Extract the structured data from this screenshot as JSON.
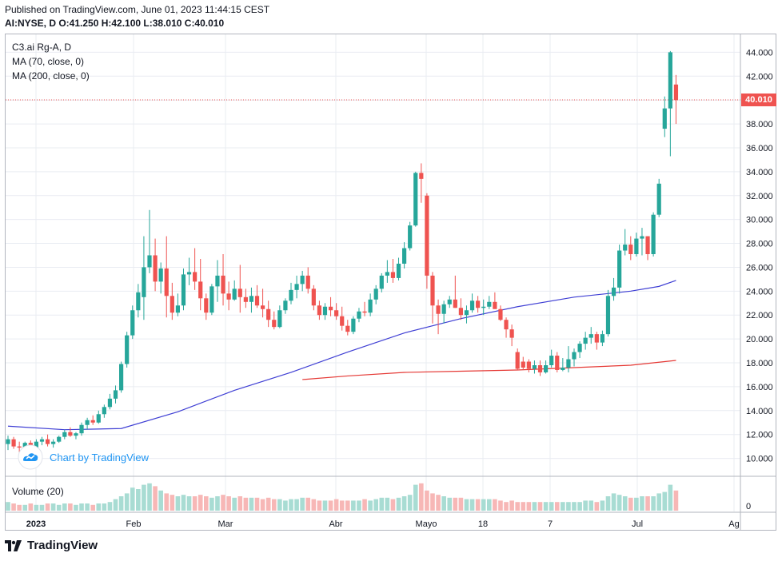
{
  "header": {
    "published": "Published on TradingView.com, June 01, 2023 11:44:15 CEST",
    "ohlc": "AI:NYSE, D O:41.250 H:42.100 L:38.010 C:40.010"
  },
  "legend": {
    "symbol": "C3.ai Rg-A, D",
    "ma70": "MA (70, close, 0)",
    "ma200": "MA (200, close, 0)"
  },
  "volume_label": "Volume (20)",
  "watermark": "Chart by TradingView",
  "footer_brand": "TradingView",
  "last_price_label": "40.010",
  "colors": {
    "up": "#26a69a",
    "down": "#ef5350",
    "ma70": "#3f3fd4",
    "ma200": "#e53935",
    "grid": "#e9ecf2"
  },
  "chart_data": {
    "type": "candlestick",
    "ylim": [
      8.5,
      45.5
    ],
    "y_ticks": [
      "10.000",
      "12.000",
      "14.000",
      "16.000",
      "18.000",
      "20.000",
      "22.000",
      "24.000",
      "26.000",
      "28.000",
      "30.000",
      "32.000",
      "34.000",
      "36.000",
      "38.000",
      "40.000",
      "42.000",
      "44.000"
    ],
    "x_ticks": [
      "2023",
      "Feb",
      "Mar",
      "Abr",
      "Mayo",
      "18",
      "7",
      "Jul",
      "Ag"
    ],
    "volume_axis_label": "0",
    "last_close": 40.01,
    "candles": [
      [
        11.2,
        11.9,
        10.7,
        11.6
      ],
      [
        11.6,
        11.8,
        10.8,
        11.0
      ],
      [
        11.0,
        11.4,
        10.5,
        10.9
      ],
      [
        10.9,
        11.4,
        10.6,
        11.3
      ],
      [
        11.3,
        11.5,
        10.7,
        10.9
      ],
      [
        10.9,
        11.6,
        10.6,
        11.4
      ],
      [
        11.4,
        11.8,
        11.1,
        11.6
      ],
      [
        11.6,
        12.0,
        11.0,
        11.2
      ],
      [
        11.2,
        11.6,
        10.9,
        11.4
      ],
      [
        11.4,
        11.9,
        11.3,
        11.8
      ],
      [
        11.8,
        12.4,
        11.6,
        12.2
      ],
      [
        12.2,
        12.6,
        11.8,
        11.9
      ],
      [
        11.9,
        12.2,
        11.6,
        12.1
      ],
      [
        12.1,
        13.0,
        11.9,
        12.8
      ],
      [
        12.8,
        13.4,
        12.4,
        13.2
      ],
      [
        13.2,
        13.6,
        12.8,
        13.0
      ],
      [
        13.0,
        14.0,
        12.9,
        13.7
      ],
      [
        13.7,
        14.5,
        13.4,
        14.3
      ],
      [
        14.3,
        15.4,
        14.1,
        15.0
      ],
      [
        15.0,
        16.1,
        14.6,
        15.7
      ],
      [
        15.7,
        18.1,
        15.5,
        17.9
      ],
      [
        17.9,
        20.6,
        17.6,
        20.3
      ],
      [
        20.3,
        22.8,
        20.0,
        22.4
      ],
      [
        22.4,
        24.6,
        21.8,
        23.9
      ],
      [
        23.5,
        28.6,
        21.6,
        26.0
      ],
      [
        26.0,
        30.8,
        25.5,
        27.0
      ],
      [
        27.0,
        28.4,
        24.0,
        24.8
      ],
      [
        24.8,
        26.4,
        23.8,
        25.9
      ],
      [
        25.9,
        28.6,
        21.8,
        23.6
      ],
      [
        23.6,
        24.7,
        21.6,
        22.2
      ],
      [
        22.2,
        23.8,
        21.9,
        22.8
      ],
      [
        22.8,
        25.9,
        22.4,
        25.4
      ],
      [
        25.4,
        26.8,
        24.5,
        25.6
      ],
      [
        25.6,
        27.6,
        24.1,
        24.8
      ],
      [
        24.8,
        26.7,
        22.4,
        23.4
      ],
      [
        23.4,
        23.8,
        21.6,
        22.2
      ],
      [
        22.2,
        24.6,
        22.0,
        24.4
      ],
      [
        24.4,
        26.6,
        23.1,
        25.3
      ],
      [
        25.3,
        27.1,
        22.8,
        23.8
      ],
      [
        23.8,
        24.8,
        22.4,
        23.3
      ],
      [
        23.3,
        24.9,
        23.2,
        24.2
      ],
      [
        24.2,
        26.2,
        22.2,
        23.5
      ],
      [
        23.5,
        24.2,
        22.6,
        23.1
      ],
      [
        23.1,
        24.3,
        22.2,
        23.6
      ],
      [
        23.6,
        24.5,
        22.6,
        22.8
      ],
      [
        22.8,
        24.2,
        21.8,
        22.5
      ],
      [
        22.5,
        23.2,
        21.0,
        21.6
      ],
      [
        21.6,
        22.3,
        20.8,
        21.0
      ],
      [
        21.0,
        22.8,
        20.9,
        22.4
      ],
      [
        22.4,
        23.4,
        22.1,
        23.2
      ],
      [
        23.2,
        24.7,
        22.9,
        24.1
      ],
      [
        24.1,
        25.3,
        23.4,
        24.6
      ],
      [
        24.6,
        25.7,
        24.0,
        25.3
      ],
      [
        25.3,
        26.0,
        23.8,
        24.2
      ],
      [
        24.2,
        24.5,
        22.4,
        22.8
      ],
      [
        22.8,
        23.2,
        21.6,
        22.0
      ],
      [
        22.0,
        23.0,
        21.6,
        22.7
      ],
      [
        22.7,
        23.5,
        21.9,
        22.4
      ],
      [
        22.4,
        23.0,
        21.6,
        21.9
      ],
      [
        21.9,
        22.7,
        20.7,
        21.1
      ],
      [
        21.1,
        21.6,
        20.3,
        20.6
      ],
      [
        20.6,
        21.9,
        20.4,
        21.7
      ],
      [
        21.7,
        22.6,
        21.4,
        22.3
      ],
      [
        22.3,
        23.1,
        21.9,
        22.2
      ],
      [
        22.2,
        23.8,
        21.9,
        23.3
      ],
      [
        23.3,
        24.5,
        22.9,
        24.2
      ],
      [
        24.2,
        25.5,
        23.9,
        25.3
      ],
      [
        25.3,
        26.6,
        24.7,
        25.6
      ],
      [
        25.6,
        26.7,
        24.7,
        25.1
      ],
      [
        25.1,
        26.8,
        24.9,
        26.3
      ],
      [
        26.3,
        28.1,
        25.9,
        27.6
      ],
      [
        27.6,
        29.8,
        27.4,
        29.5
      ],
      [
        29.5,
        34.0,
        29.4,
        33.9
      ],
      [
        33.9,
        34.7,
        31.4,
        33.4
      ],
      [
        32.0,
        32.2,
        24.2,
        25.3
      ],
      [
        25.3,
        25.6,
        21.3,
        22.8
      ],
      [
        22.8,
        23.3,
        20.4,
        22.1
      ],
      [
        22.1,
        23.2,
        21.3,
        22.9
      ],
      [
        22.9,
        23.6,
        22.6,
        23.3
      ],
      [
        23.3,
        25.3,
        22.6,
        22.6
      ],
      [
        22.6,
        23.4,
        21.6,
        22.0
      ],
      [
        22.0,
        22.8,
        21.3,
        22.4
      ],
      [
        22.4,
        23.8,
        22.2,
        23.2
      ],
      [
        23.2,
        23.6,
        22.2,
        22.6
      ],
      [
        22.6,
        23.3,
        22.0,
        22.7
      ],
      [
        22.7,
        23.6,
        22.5,
        23.1
      ],
      [
        23.1,
        23.9,
        22.6,
        22.5
      ],
      [
        22.5,
        22.8,
        21.5,
        21.6
      ],
      [
        21.6,
        21.8,
        20.1,
        20.8
      ],
      [
        20.8,
        21.2,
        19.4,
        20.1
      ],
      [
        18.9,
        19.2,
        17.4,
        17.5
      ],
      [
        18.1,
        18.5,
        17.4,
        17.6
      ],
      [
        18.1,
        18.3,
        17.2,
        17.5
      ],
      [
        17.5,
        18.2,
        17.1,
        17.8
      ],
      [
        17.8,
        18.2,
        16.9,
        17.2
      ],
      [
        17.2,
        18.2,
        17.1,
        17.8
      ],
      [
        17.8,
        19.1,
        17.6,
        18.6
      ],
      [
        18.6,
        18.9,
        17.2,
        17.4
      ],
      [
        17.4,
        18.4,
        17.3,
        17.6
      ],
      [
        17.6,
        19.4,
        17.2,
        18.3
      ],
      [
        18.3,
        19.2,
        17.7,
        18.9
      ],
      [
        18.9,
        19.8,
        18.4,
        19.6
      ],
      [
        19.6,
        20.6,
        19.1,
        20.1
      ],
      [
        20.1,
        21.0,
        19.6,
        20.4
      ],
      [
        20.4,
        20.6,
        19.1,
        19.7
      ],
      [
        19.7,
        20.7,
        19.4,
        20.4
      ],
      [
        20.4,
        24.1,
        20.2,
        23.6
      ],
      [
        23.6,
        25.1,
        23.2,
        24.3
      ],
      [
        24.3,
        27.9,
        23.8,
        27.4
      ],
      [
        27.4,
        29.2,
        27.0,
        27.9
      ],
      [
        27.9,
        28.6,
        26.6,
        27.1
      ],
      [
        27.1,
        28.9,
        26.9,
        28.4
      ],
      [
        28.4,
        29.3,
        27.0,
        28.6
      ],
      [
        28.6,
        28.6,
        26.6,
        27.1
      ],
      [
        27.1,
        30.6,
        26.9,
        30.4
      ],
      [
        30.4,
        33.4,
        30.2,
        33.0
      ],
      [
        37.6,
        40.3,
        36.9,
        39.3
      ],
      [
        39.3,
        44.1,
        35.3,
        44.0
      ],
      [
        41.3,
        42.1,
        38.0,
        40.0
      ]
    ],
    "ma70": {
      "x": [
        0,
        10,
        20,
        30,
        40,
        50,
        60,
        70,
        80,
        90,
        100,
        110,
        115,
        118
      ],
      "y": [
        12.7,
        12.4,
        12.5,
        13.9,
        15.7,
        17.2,
        18.9,
        20.5,
        21.7,
        22.7,
        23.5,
        24.0,
        24.4,
        24.9
      ]
    },
    "ma200": {
      "x": [
        52,
        60,
        70,
        80,
        90,
        100,
        110,
        118
      ],
      "y": [
        16.6,
        16.9,
        17.2,
        17.3,
        17.4,
        17.6,
        17.8,
        18.2
      ]
    },
    "volume": [
      6,
      5,
      4,
      4,
      5,
      4,
      4,
      5,
      5,
      4,
      5,
      5,
      4,
      5,
      5,
      4,
      5,
      5,
      6,
      8,
      10,
      12,
      16,
      15,
      18,
      19,
      17,
      14,
      12,
      11,
      10,
      11,
      10,
      10,
      11,
      10,
      9,
      10,
      11,
      10,
      9,
      10,
      9,
      9,
      9,
      8,
      9,
      8,
      8,
      7,
      8,
      8,
      9,
      9,
      8,
      7,
      7,
      7,
      8,
      7,
      7,
      7,
      7,
      8,
      7,
      8,
      9,
      9,
      8,
      9,
      10,
      11,
      18,
      19,
      14,
      12,
      11,
      10,
      9,
      9,
      9,
      8,
      8,
      8,
      8,
      8,
      8,
      7,
      6,
      7,
      6,
      6,
      6,
      6,
      6,
      6,
      6,
      6,
      6,
      6,
      6,
      6,
      7,
      7,
      6,
      7,
      10,
      12,
      11,
      10,
      9,
      9,
      10,
      10,
      10,
      12,
      13,
      18,
      14
    ]
  }
}
